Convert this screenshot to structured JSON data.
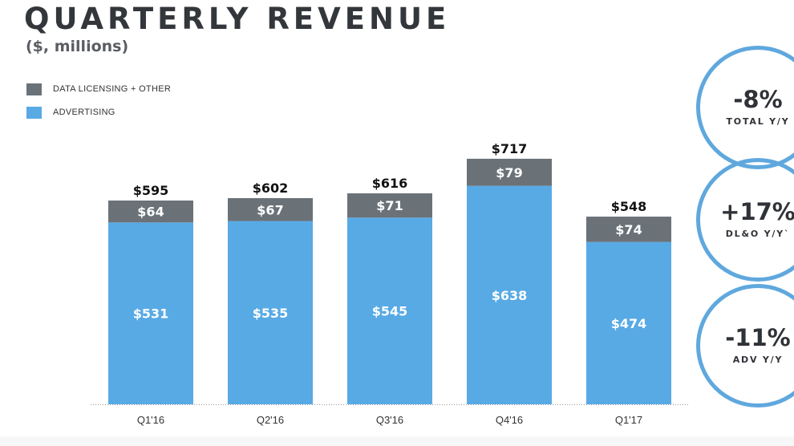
{
  "title": "QUARTERLY REVENUE",
  "subtitle": "($, millions)",
  "colors": {
    "dl_other": "#6a7278",
    "advertising": "#58aae5",
    "ring": "#5fa8de"
  },
  "legend": [
    {
      "label": "DATA LICENSING + OTHER",
      "color": "#6a7278"
    },
    {
      "label": "ADVERTISING",
      "color": "#58aae5"
    }
  ],
  "kpis": [
    {
      "value": "-8%",
      "label": "TOTAL Y/Y"
    },
    {
      "value": "+17%",
      "label": "DL&O Y/Y`"
    },
    {
      "value": "-11%",
      "label": "ADV Y/Y"
    }
  ],
  "chart_data": {
    "type": "bar",
    "stacked": true,
    "categories": [
      "Q1'16",
      "Q2'16",
      "Q3'16",
      "Q4'16",
      "Q1'17"
    ],
    "series": [
      {
        "name": "ADVERTISING",
        "values": [
          531,
          535,
          545,
          638,
          474
        ],
        "labels": [
          "$531",
          "$535",
          "$545",
          "$638",
          "$474"
        ],
        "color": "#58aae5"
      },
      {
        "name": "DATA LICENSING + OTHER",
        "values": [
          64,
          67,
          71,
          79,
          74
        ],
        "labels": [
          "$64",
          "$67",
          "$71",
          "$79",
          "$74"
        ],
        "color": "#6a7278"
      }
    ],
    "totals": [
      595,
      602,
      616,
      717,
      548
    ],
    "total_labels": [
      "$595",
      "$602",
      "$616",
      "$717",
      "$548"
    ],
    "ylim": [
      0,
      800
    ],
    "grid": false,
    "legend_position": "top-left"
  }
}
